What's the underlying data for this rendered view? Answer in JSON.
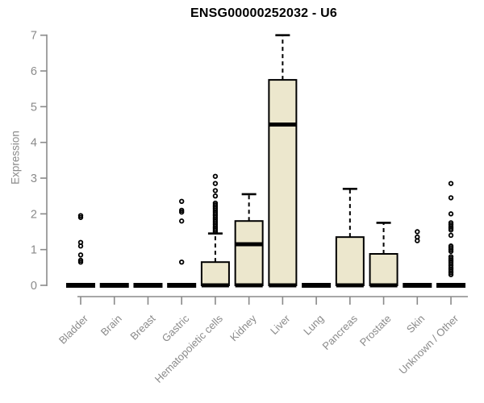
{
  "chart_data": {
    "type": "boxplot",
    "title": "ENSG00000252032 - U6",
    "ylabel": "Expression",
    "xlabel": "",
    "ylim": [
      0,
      7
    ],
    "yticks": [
      0,
      1,
      2,
      3,
      4,
      5,
      6,
      7
    ],
    "grid": "off",
    "legend": "none",
    "categories": [
      "Bladder",
      "Brain",
      "Breast",
      "Gastric",
      "Hematopoietic cells",
      "Kidney",
      "Liver",
      "Lung",
      "Pancreas",
      "Prostate",
      "Skin",
      "Unknown / Other"
    ],
    "series": [
      {
        "name": "Bladder",
        "q1": 0,
        "median": 0,
        "q3": 0,
        "whisker_low": 0,
        "whisker_high": 0,
        "outliers": [
          1.95,
          1.9,
          1.2,
          1.1,
          0.85,
          0.7,
          0.65
        ]
      },
      {
        "name": "Brain",
        "q1": 0,
        "median": 0,
        "q3": 0,
        "whisker_low": 0,
        "whisker_high": 0,
        "outliers": []
      },
      {
        "name": "Breast",
        "q1": 0,
        "median": 0,
        "q3": 0,
        "whisker_low": 0,
        "whisker_high": 0,
        "outliers": []
      },
      {
        "name": "Gastric",
        "q1": 0,
        "median": 0,
        "q3": 0,
        "whisker_low": 0,
        "whisker_high": 0,
        "outliers": [
          2.35,
          2.1,
          2.05,
          1.8,
          0.65
        ]
      },
      {
        "name": "Hematopoietic cells",
        "q1": 0,
        "median": 0,
        "q3": 0.65,
        "whisker_low": 0,
        "whisker_high": 1.45,
        "outliers": [
          1.5,
          1.55,
          1.6,
          1.65,
          1.7,
          1.75,
          1.8,
          1.85,
          1.9,
          1.95,
          2.0,
          2.05,
          2.1,
          2.15,
          2.2,
          2.25,
          2.3,
          2.5,
          2.65,
          2.85,
          3.05
        ]
      },
      {
        "name": "Kidney",
        "q1": 0,
        "median": 1.15,
        "q3": 1.8,
        "whisker_low": 0,
        "whisker_high": 2.55,
        "outliers": []
      },
      {
        "name": "Liver",
        "q1": 0,
        "median": 4.5,
        "q3": 5.75,
        "whisker_low": 0,
        "whisker_high": 7.0,
        "outliers": []
      },
      {
        "name": "Lung",
        "q1": 0,
        "median": 0,
        "q3": 0,
        "whisker_low": 0,
        "whisker_high": 0,
        "outliers": []
      },
      {
        "name": "Pancreas",
        "q1": 0,
        "median": 0,
        "q3": 1.35,
        "whisker_low": 0,
        "whisker_high": 2.7,
        "outliers": []
      },
      {
        "name": "Prostate",
        "q1": 0,
        "median": 0,
        "q3": 0.88,
        "whisker_low": 0,
        "whisker_high": 1.75,
        "outliers": []
      },
      {
        "name": "Skin",
        "q1": 0,
        "median": 0,
        "q3": 0,
        "whisker_low": 0,
        "whisker_high": 0,
        "outliers": [
          1.5,
          1.35,
          1.25
        ]
      },
      {
        "name": "Unknown / Other",
        "q1": 0,
        "median": 0,
        "q3": 0,
        "whisker_low": 0,
        "whisker_high": 0,
        "outliers": [
          2.85,
          2.45,
          2.0,
          1.75,
          1.7,
          1.65,
          1.6,
          1.55,
          1.4,
          1.1,
          1.05,
          1.0,
          0.95,
          0.8,
          0.75,
          0.7,
          0.65,
          0.6,
          0.55,
          0.5,
          0.45,
          0.4,
          0.35,
          0.3
        ]
      }
    ],
    "colors": {
      "box_fill": "#ECE7CD",
      "box_border": "#000000",
      "median": "#000000",
      "whisker": "#000000",
      "outlier": "#000000",
      "axis": "#8a8a8a",
      "label": "#8a8a8a",
      "title": "#000000",
      "background": "#ffffff"
    }
  }
}
